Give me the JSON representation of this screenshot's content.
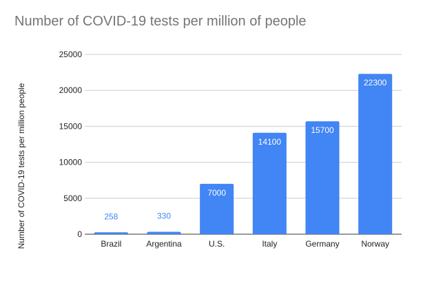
{
  "chart_data": {
    "type": "bar",
    "title": "Number of COVID-19 tests per million of people",
    "xlabel": "",
    "ylabel": "Number of COVID-19 tests per million people",
    "categories": [
      "Brazil",
      "Argentina",
      "U.S.",
      "Italy",
      "Germany",
      "Norway"
    ],
    "values": [
      258,
      330,
      7000,
      14100,
      15700,
      22300
    ],
    "data_labels": [
      "258",
      "330",
      "7000",
      "14100",
      "15700",
      "22300"
    ],
    "ylim": [
      0,
      25000
    ],
    "yticks": [
      "0",
      "5000",
      "10000",
      "15000",
      "20000",
      "25000"
    ],
    "grid": true,
    "legend": "none",
    "colors": {
      "bar": "#4285f4",
      "label_inside": "#ffffff",
      "label_outside": "#4285f4",
      "gridline": "#cccccc",
      "axis": "#333333",
      "title": "#757575"
    }
  }
}
